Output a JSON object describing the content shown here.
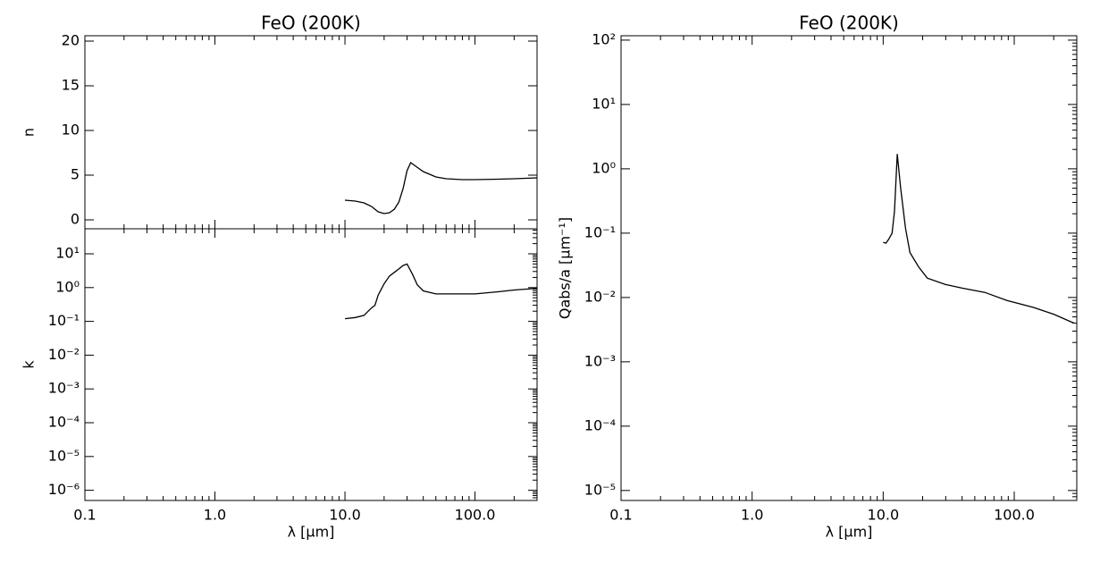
{
  "chart_data": [
    {
      "type": "line",
      "title": "FeO (200K)",
      "y_label": "n",
      "x_log": false,
      "y_log": false,
      "color": "#000000",
      "xlim": [
        0.1,
        300
      ],
      "xticks": [
        0.1,
        1,
        10,
        100
      ],
      "ylim": [
        -1,
        20.6
      ],
      "yticks": [
        0,
        5,
        10,
        15,
        20
      ],
      "x": [
        10,
        12,
        14,
        16,
        18,
        20,
        22,
        24,
        26,
        28,
        30,
        32,
        35,
        40,
        50,
        60,
        80,
        100,
        150,
        200,
        300
      ],
      "values": [
        2.2,
        2.1,
        1.9,
        1.5,
        0.9,
        0.7,
        0.8,
        1.2,
        2.0,
        3.5,
        5.5,
        6.4,
        6.0,
        5.4,
        4.8,
        4.6,
        4.5,
        4.5,
        4.55,
        4.6,
        4.7
      ]
    },
    {
      "type": "line",
      "x_label": "λ [μm]",
      "y_label": "k",
      "y_log": true,
      "color": "#000000",
      "xlim": [
        0.1,
        300
      ],
      "xticks": [
        {
          "value": 0.1,
          "label": "0.1"
        },
        {
          "value": 1,
          "label": "1.0"
        },
        {
          "value": 10,
          "label": "10.0"
        },
        {
          "value": 100,
          "label": "100.0"
        }
      ],
      "ylim": [
        5e-07,
        55
      ],
      "yticks": [
        {
          "value": 10,
          "label": "10¹"
        },
        {
          "value": 1,
          "label": "10⁰"
        },
        {
          "value": 0.1,
          "label": "10⁻¹"
        },
        {
          "value": 0.01,
          "label": "10⁻²"
        },
        {
          "value": 0.001,
          "label": "10⁻³"
        },
        {
          "value": 0.0001,
          "label": "10⁻⁴"
        },
        {
          "value": 1e-05,
          "label": "10⁻⁵"
        },
        {
          "value": 1e-06,
          "label": "10⁻⁶"
        }
      ],
      "x": [
        10,
        12,
        14,
        16,
        17,
        18,
        20,
        22,
        25,
        28,
        30,
        33,
        36,
        40,
        50,
        70,
        100,
        150,
        200,
        300
      ],
      "values": [
        0.12,
        0.13,
        0.15,
        0.25,
        0.3,
        0.6,
        1.3,
        2.2,
        3.2,
        4.5,
        5,
        2.5,
        1.2,
        0.8,
        0.65,
        0.65,
        0.65,
        0.75,
        0.85,
        0.95
      ]
    },
    {
      "type": "line",
      "title": "FeO (200K)",
      "x_label": "λ [μm]",
      "y_label": "Qabs/a [μm⁻¹]",
      "y_log": true,
      "color": "#000000",
      "xlim": [
        0.1,
        300
      ],
      "xticks": [
        {
          "value": 0.1,
          "label": "0.1"
        },
        {
          "value": 1,
          "label": "1.0"
        },
        {
          "value": 10,
          "label": "10.0"
        },
        {
          "value": 100,
          "label": "100.0"
        }
      ],
      "ylim": [
        7e-06,
        117
      ],
      "yticks": [
        {
          "value": 100,
          "label": "10²"
        },
        {
          "value": 10,
          "label": "10¹"
        },
        {
          "value": 1,
          "label": "10⁰"
        },
        {
          "value": 0.1,
          "label": "10⁻¹"
        },
        {
          "value": 0.01,
          "label": "10⁻²"
        },
        {
          "value": 0.001,
          "label": "10⁻³"
        },
        {
          "value": 0.0001,
          "label": "10⁻⁴"
        },
        {
          "value": 1e-05,
          "label": "10⁻⁵"
        }
      ],
      "x": [
        10,
        10.5,
        11,
        11.7,
        12.2,
        12.8,
        13.6,
        14.8,
        16,
        18.6,
        21.7,
        29.7,
        40,
        59.6,
        88,
        140,
        200,
        285
      ],
      "values": [
        0.072,
        0.07,
        0.08,
        0.1,
        0.22,
        1.7,
        0.5,
        0.12,
        0.05,
        0.03,
        0.02,
        0.016,
        0.014,
        0.012,
        0.009,
        0.007,
        0.0055,
        0.004
      ]
    }
  ]
}
